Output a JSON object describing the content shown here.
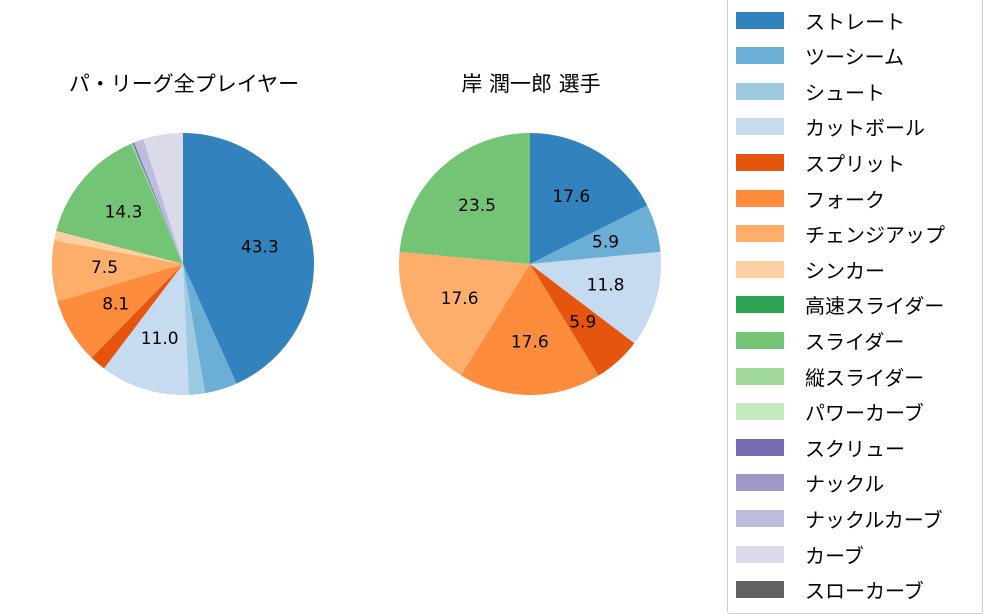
{
  "chart_data": [
    {
      "type": "pie",
      "title": "パ・リーグ全プレイヤー",
      "labels": [
        "ストレート",
        "ツーシーム",
        "シュート",
        "カットボール",
        "スプリット",
        "フォーク",
        "チェンジアップ",
        "シンカー",
        "高速スライダー",
        "スライダー",
        "縦スライダー",
        "パワーカーブ",
        "スクリュー",
        "ナックル",
        "ナックルカーブ",
        "カーブ",
        "スローカーブ"
      ],
      "values": [
        43.3,
        4.0,
        2.0,
        11.0,
        2.0,
        8.1,
        7.5,
        1.2,
        0.1,
        14.3,
        0.2,
        0.0,
        0.2,
        0.0,
        1.2,
        4.9,
        0.0
      ],
      "shown_labels": [
        "43.3",
        "11.0",
        "8.1",
        "14.3"
      ],
      "start_angle": "top, clockwise"
    },
    {
      "type": "pie",
      "title": "岸 潤一郎  選手",
      "labels": [
        "ストレート",
        "ツーシーム",
        "シュート",
        "カットボール",
        "スプリット",
        "フォーク",
        "チェンジアップ",
        "シンカー",
        "高速スライダー",
        "スライダー",
        "縦スライダー",
        "パワーカーブ",
        "スクリュー",
        "ナックル",
        "ナックルカーブ",
        "カーブ",
        "スローカーブ"
      ],
      "values": [
        17.6,
        5.9,
        0.0,
        11.8,
        5.9,
        17.6,
        17.6,
        0.0,
        0.0,
        23.5,
        0.0,
        0.0,
        0.0,
        0.0,
        0.0,
        0.0,
        0.0
      ],
      "shown_labels": [
        "17.6",
        "5.9",
        "11.8",
        "5.9",
        "17.6",
        "17.6",
        "23.5"
      ],
      "start_angle": "top, clockwise"
    }
  ],
  "titles": {
    "left": "パ・リーグ全プレイヤー",
    "right": "岸 潤一郎  選手"
  },
  "legend": {
    "position": "right",
    "items": [
      {
        "label": "ストレート",
        "color": "#3182bd"
      },
      {
        "label": "ツーシーム",
        "color": "#6baed6"
      },
      {
        "label": "シュート",
        "color": "#9ecae1"
      },
      {
        "label": "カットボール",
        "color": "#c6dbef"
      },
      {
        "label": "スプリット",
        "color": "#e6550d"
      },
      {
        "label": "フォーク",
        "color": "#fd8d3c"
      },
      {
        "label": "チェンジアップ",
        "color": "#fdae6b"
      },
      {
        "label": "シンカー",
        "color": "#fdd0a2"
      },
      {
        "label": "高速スライダー",
        "color": "#31a354"
      },
      {
        "label": "スライダー",
        "color": "#74c476"
      },
      {
        "label": "縦スライダー",
        "color": "#a1d99b"
      },
      {
        "label": "パワーカーブ",
        "color": "#c7e9c0"
      },
      {
        "label": "スクリュー",
        "color": "#756bb1"
      },
      {
        "label": "ナックル",
        "color": "#9e9ac8"
      },
      {
        "label": "ナックルカーブ",
        "color": "#bcbddc"
      },
      {
        "label": "カーブ",
        "color": "#dadaeb"
      },
      {
        "label": "スローカーブ",
        "color": "#636363"
      }
    ]
  }
}
